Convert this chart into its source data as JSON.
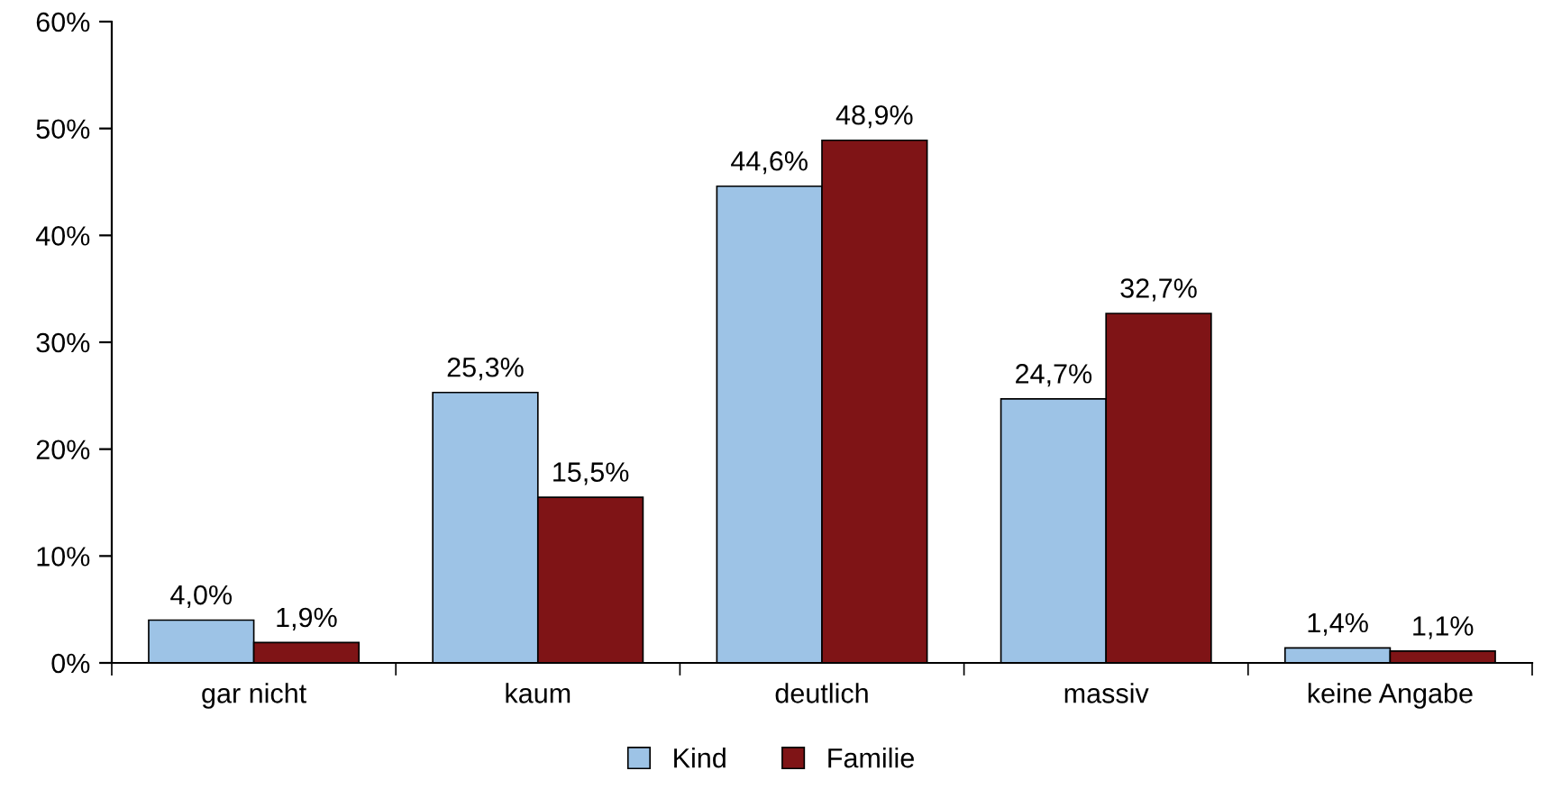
{
  "chart_data": {
    "type": "bar",
    "categories": [
      "gar nicht",
      "kaum",
      "deutlich",
      "massiv",
      "keine Angabe"
    ],
    "series": [
      {
        "name": "Kind",
        "color": "#9dc3e6",
        "values": [
          4.0,
          25.3,
          44.6,
          24.7,
          1.4
        ],
        "value_labels": [
          "4,0%",
          "25,3%",
          "44,6%",
          "24,7%",
          "1,4%"
        ]
      },
      {
        "name": "Familie",
        "color": "#7f1416",
        "values": [
          1.9,
          15.5,
          48.9,
          32.7,
          1.1
        ],
        "value_labels": [
          "1,9%",
          "15,5%",
          "48,9%",
          "32,7%",
          "1,1%"
        ]
      }
    ],
    "ylim": [
      0,
      60
    ],
    "yticks": [
      {
        "value": 0,
        "label": "0%"
      },
      {
        "value": 10,
        "label": "10%"
      },
      {
        "value": 20,
        "label": "20%"
      },
      {
        "value": 30,
        "label": "30%"
      },
      {
        "value": 40,
        "label": "40%"
      },
      {
        "value": 50,
        "label": "50%"
      },
      {
        "value": 60,
        "label": "60%"
      }
    ],
    "grid": false,
    "legend": "bottom"
  }
}
